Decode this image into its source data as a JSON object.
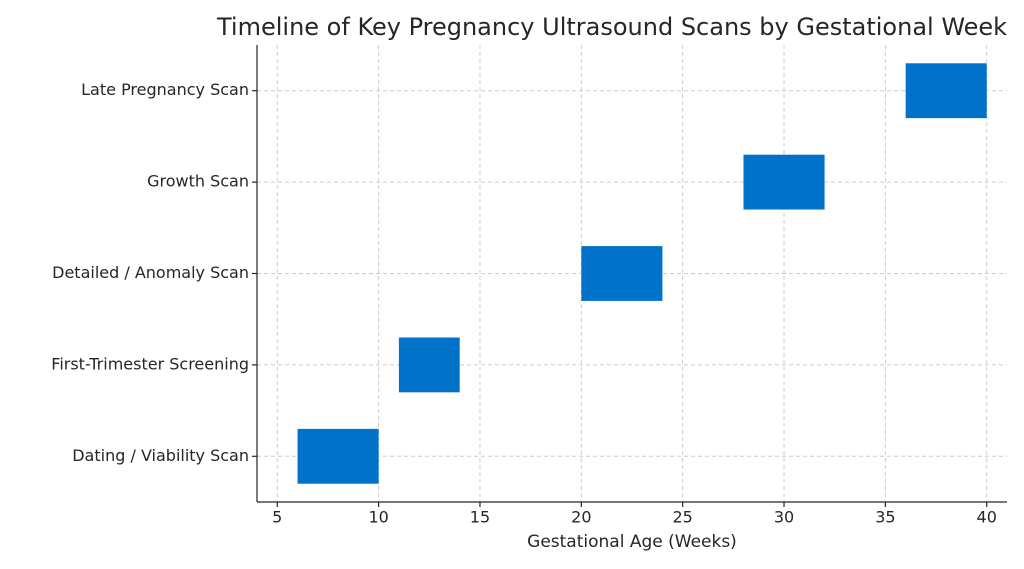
{
  "chart_data": {
    "type": "range-bar",
    "title": "Timeline of Key Pregnancy Ultrasound Scans by Gestational Week",
    "x_label": "Gestational Age (Weeks)",
    "categories": [
      "Dating / Viability Scan",
      "First-Trimester Screening",
      "Detailed / Anomaly Scan",
      "Growth Scan",
      "Late Pregnancy Scan"
    ],
    "starts": [
      6,
      11,
      20,
      28,
      36
    ],
    "ends": [
      10,
      14,
      24,
      32,
      40
    ],
    "color": "#0072c9",
    "xlim": [
      4,
      41
    ],
    "xticks": [
      5,
      10,
      15,
      20,
      25,
      30,
      35,
      40
    ],
    "grid": true
  }
}
